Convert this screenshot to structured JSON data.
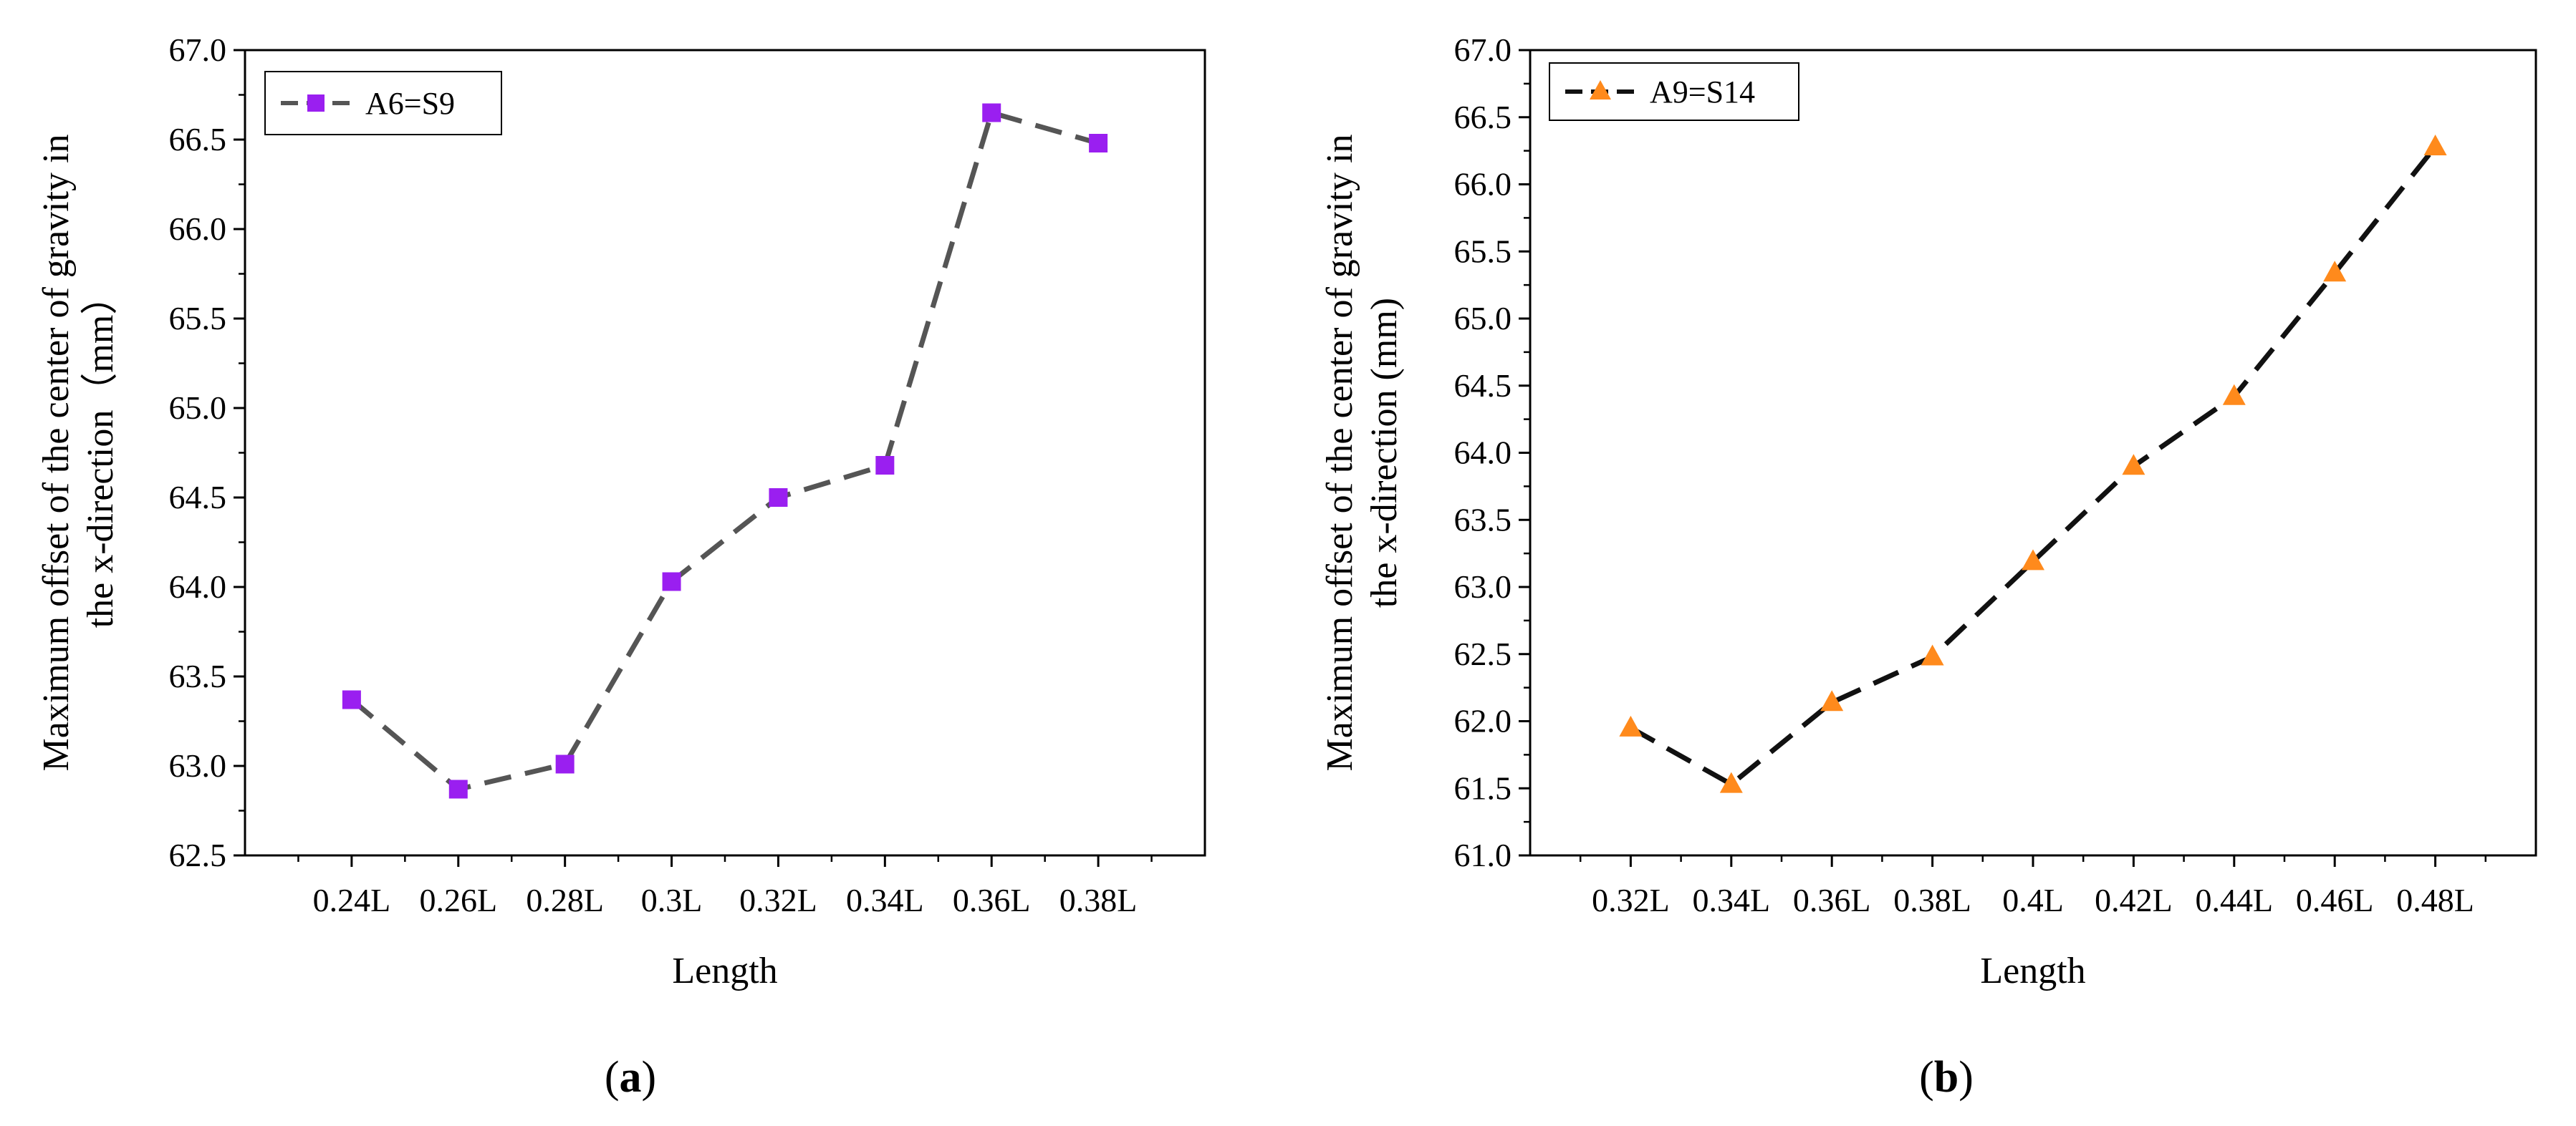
{
  "chart_data": [
    {
      "type": "line",
      "panel_label": "a",
      "xlabel": "Length",
      "ylabel_line1": "Maximum offset of the center of gravity in",
      "ylabel_line2": "the x-direction（mm）",
      "categories": [
        "0.24L",
        "0.26L",
        "0.28L",
        "0.3L",
        "0.32L",
        "0.34L",
        "0.36L",
        "0.38L"
      ],
      "ylim": [
        62.5,
        67.0
      ],
      "ytick_step": 0.5,
      "grid": false,
      "legend_position": "top-left",
      "series": [
        {
          "name": "A6=S9",
          "marker": "square",
          "line_style": "dashed",
          "values": [
            63.37,
            62.87,
            63.01,
            64.03,
            64.5,
            64.68,
            66.65,
            66.48
          ]
        }
      ],
      "colors": {
        "marker": "#9a1ff0",
        "line": "#555555"
      }
    },
    {
      "type": "line",
      "panel_label": "b",
      "xlabel": "Length",
      "ylabel_line1": "Maximum offset of the center of gravity in",
      "ylabel_line2": "the x-direction (mm)",
      "categories": [
        "0.32L",
        "0.34L",
        "0.36L",
        "0.38L",
        "0.4L",
        "0.42L",
        "0.44L",
        "0.46L",
        "0.48L"
      ],
      "ylim": [
        61.0,
        67.0
      ],
      "ytick_step": 0.5,
      "grid": false,
      "legend_position": "top-left",
      "series": [
        {
          "name": "A9=S14",
          "marker": "triangle",
          "line_style": "dashed",
          "values": [
            61.95,
            61.53,
            62.14,
            62.48,
            63.19,
            63.9,
            64.42,
            65.34,
            66.28
          ]
        }
      ],
      "colors": {
        "marker": "#ff8a1c",
        "line": "#111111"
      }
    }
  ]
}
